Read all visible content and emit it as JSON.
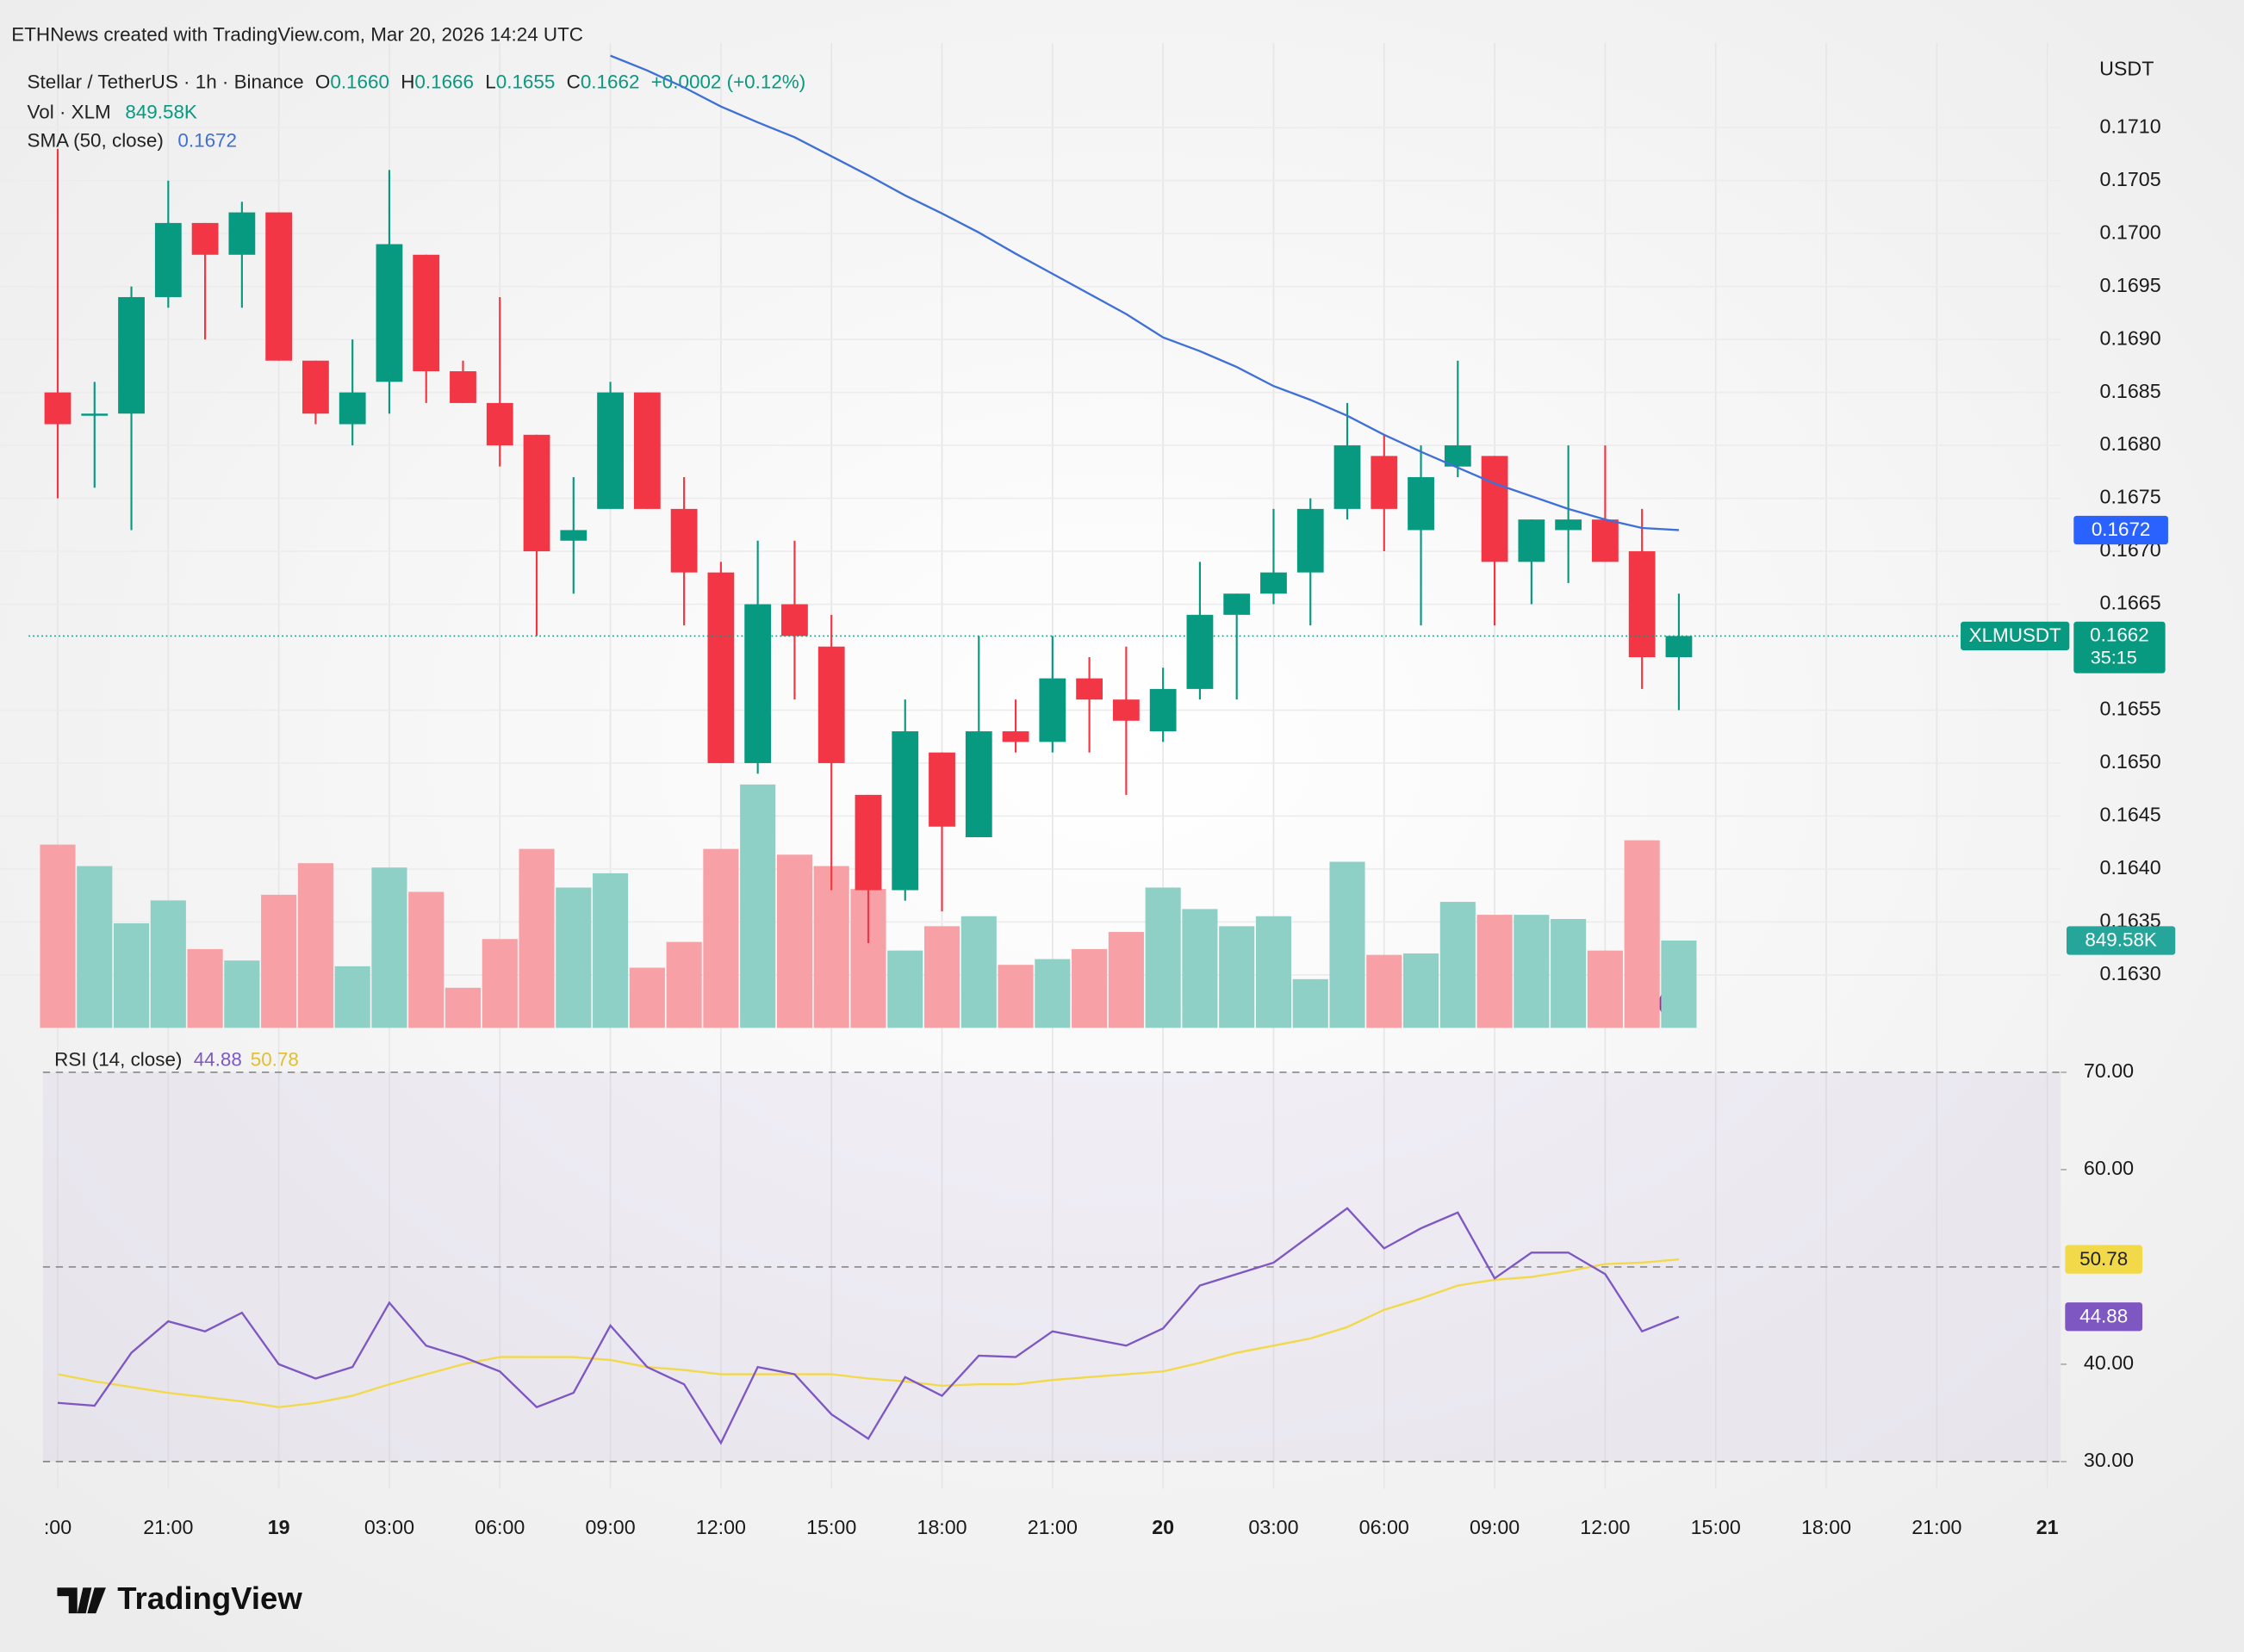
{
  "header": {
    "watermark": "ETHNews created with TradingView.com, Mar 20, 2026 14:24 UTC",
    "symbol": "Stellar / TetherUS · 1h · Binance",
    "ohlc": [
      {
        "key": "O",
        "value": "0.1660"
      },
      {
        "key": "H",
        "value": "0.1666"
      },
      {
        "key": "L",
        "value": "0.1655"
      },
      {
        "key": "C",
        "value": "0.1662"
      }
    ],
    "change": "+0.0002 (+0.12%)",
    "volume_label": "Vol · XLM",
    "volume_value": "849.58K",
    "sma_label": "SMA (50, close)",
    "sma_value": "0.1672",
    "rsi_label": "RSI (14, close)",
    "rsi_value": "44.88",
    "rsi_ma_value": "50.78",
    "currency": "USDT",
    "logo": "TradingView"
  },
  "chart_data": [
    {
      "type": "candlestick",
      "x": [
        "2026-03-18T18:00",
        "2026-03-18T19:00",
        "2026-03-18T20:00",
        "2026-03-18T21:00",
        "2026-03-18T22:00",
        "2026-03-18T23:00",
        "2026-03-19T00:00",
        "2026-03-19T01:00",
        "2026-03-19T02:00",
        "2026-03-19T03:00",
        "2026-03-19T04:00",
        "2026-03-19T05:00",
        "2026-03-19T06:00",
        "2026-03-19T07:00",
        "2026-03-19T08:00",
        "2026-03-19T09:00",
        "2026-03-19T10:00",
        "2026-03-19T11:00",
        "2026-03-19T12:00",
        "2026-03-19T13:00",
        "2026-03-19T14:00",
        "2026-03-19T15:00",
        "2026-03-19T16:00",
        "2026-03-19T17:00",
        "2026-03-19T18:00",
        "2026-03-19T19:00",
        "2026-03-19T20:00",
        "2026-03-19T21:00",
        "2026-03-19T22:00",
        "2026-03-19T23:00",
        "2026-03-20T00:00",
        "2026-03-20T01:00",
        "2026-03-20T02:00",
        "2026-03-20T03:00",
        "2026-03-20T04:00",
        "2026-03-20T05:00",
        "2026-03-20T06:00",
        "2026-03-20T07:00",
        "2026-03-20T08:00",
        "2026-03-20T09:00",
        "2026-03-20T10:00",
        "2026-03-20T11:00",
        "2026-03-20T12:00",
        "2026-03-20T13:00",
        "2026-03-20T14:00"
      ],
      "open": [
        0.1685,
        0.1683,
        0.1683,
        0.1694,
        0.1701,
        0.1698,
        0.1702,
        0.1688,
        0.1682,
        0.1686,
        0.1698,
        0.1687,
        0.1684,
        0.1681,
        0.1671,
        0.1674,
        0.1685,
        0.1674,
        0.1668,
        0.165,
        0.1665,
        0.1661,
        0.1647,
        0.1638,
        0.1651,
        0.1643,
        0.1653,
        0.1652,
        0.1658,
        0.1656,
        0.1653,
        0.1657,
        0.1664,
        0.1666,
        0.1668,
        0.1674,
        0.1679,
        0.1672,
        0.1678,
        0.1679,
        0.1669,
        0.1672,
        0.1673,
        0.167,
        0.166
      ],
      "high": [
        0.1708,
        0.1686,
        0.1695,
        0.1705,
        0.1701,
        0.1703,
        0.1702,
        0.1688,
        0.169,
        0.1706,
        0.1698,
        0.1688,
        0.1694,
        0.1681,
        0.1677,
        0.1686,
        0.1685,
        0.1677,
        0.1669,
        0.1671,
        0.1671,
        0.1664,
        0.1647,
        0.1656,
        0.1651,
        0.1662,
        0.1656,
        0.1662,
        0.166,
        0.1661,
        0.1659,
        0.1669,
        0.1666,
        0.1674,
        0.1675,
        0.1684,
        0.1681,
        0.168,
        0.1688,
        0.1679,
        0.1673,
        0.168,
        0.168,
        0.1674,
        0.1666
      ],
      "low": [
        0.1675,
        0.1676,
        0.1672,
        0.1693,
        0.169,
        0.1693,
        0.1688,
        0.1682,
        0.168,
        0.1683,
        0.1684,
        0.1684,
        0.1678,
        0.1662,
        0.1666,
        0.1674,
        0.1674,
        0.1663,
        0.165,
        0.1649,
        0.1656,
        0.1638,
        0.1633,
        0.1637,
        0.1636,
        0.1643,
        0.1651,
        0.1651,
        0.1651,
        0.1647,
        0.1652,
        0.1656,
        0.1656,
        0.1665,
        0.1663,
        0.1673,
        0.167,
        0.1663,
        0.1677,
        0.1663,
        0.1665,
        0.1667,
        0.1669,
        0.1657,
        0.1655
      ],
      "close": [
        0.1682,
        0.1683,
        0.1694,
        0.1701,
        0.1698,
        0.1702,
        0.1688,
        0.1683,
        0.1685,
        0.1699,
        0.1687,
        0.1684,
        0.168,
        0.167,
        0.1672,
        0.1685,
        0.1674,
        0.1668,
        0.165,
        0.1665,
        0.1662,
        0.165,
        0.1638,
        0.1653,
        0.1644,
        0.1653,
        0.1652,
        0.1658,
        0.1656,
        0.1654,
        0.1657,
        0.1664,
        0.1666,
        0.1668,
        0.1674,
        0.168,
        0.1674,
        0.1677,
        0.168,
        0.1669,
        0.1673,
        0.1673,
        0.1669,
        0.166,
        0.1662
      ],
      "volume": [
        1783000,
        1574000,
        1017000,
        1240000,
        766000,
        655000,
        1295000,
        1602000,
        599000,
        1560000,
        1323000,
        390000,
        864000,
        1741000,
        1365000,
        1504000,
        585000,
        836000,
        1741000,
        2368000,
        1685000,
        1574000,
        1351000,
        752000,
        989000,
        1086000,
        613000,
        669000,
        766000,
        933000,
        1365000,
        1156000,
        989000,
        1086000,
        474000,
        1616000,
        710000,
        724000,
        1226000,
        1100000,
        1100000,
        1059000,
        752000,
        1825000,
        849580
      ],
      "sma": {
        "color": "#3f6fd8",
        "values": [
          null,
          null,
          null,
          null,
          null,
          null,
          null,
          null,
          null,
          null,
          null,
          null,
          null,
          null,
          null,
          0.17168,
          0.17154,
          0.17138,
          0.1712,
          0.17105,
          0.17091,
          0.17073,
          0.17055,
          0.17036,
          0.17019,
          0.17001,
          0.16981,
          0.16962,
          0.16943,
          0.16924,
          0.16902,
          0.16889,
          0.16874,
          0.16856,
          0.16843,
          0.16828,
          0.1681,
          0.16794,
          0.16779,
          0.16764,
          0.16752,
          0.1674,
          0.1673,
          0.16722,
          0.1672
        ]
      },
      "up_color": "#089981",
      "down_color": "#f23645",
      "up_volume_color": "#8fd0c6",
      "down_volume_color": "#f7a0a6",
      "xlim": [
        "2026-03-18T16:26",
        "2026-03-21T00:22"
      ],
      "xticks": [
        {
          "value": "2026-03-18T18:00",
          "label": ":00"
        },
        {
          "value": "2026-03-18T21:00",
          "label": "21:00"
        },
        {
          "value": "2026-03-19T00:00",
          "label": "19"
        },
        {
          "value": "2026-03-19T03:00",
          "label": "03:00"
        },
        {
          "value": "2026-03-19T06:00",
          "label": "06:00"
        },
        {
          "value": "2026-03-19T09:00",
          "label": "09:00"
        },
        {
          "value": "2026-03-19T12:00",
          "label": "12:00"
        },
        {
          "value": "2026-03-19T15:00",
          "label": "15:00"
        },
        {
          "value": "2026-03-19T18:00",
          "label": "18:00"
        },
        {
          "value": "2026-03-19T21:00",
          "label": "21:00"
        },
        {
          "value": "2026-03-20T00:00",
          "label": "20"
        },
        {
          "value": "2026-03-20T03:00",
          "label": "03:00"
        },
        {
          "value": "2026-03-20T06:00",
          "label": "06:00"
        },
        {
          "value": "2026-03-20T09:00",
          "label": "09:00"
        },
        {
          "value": "2026-03-20T12:00",
          "label": "12:00"
        },
        {
          "value": "2026-03-20T15:00",
          "label": "15:00"
        },
        {
          "value": "2026-03-20T18:00",
          "label": "18:00"
        },
        {
          "value": "2026-03-20T21:00",
          "label": "21:00"
        },
        {
          "value": "2026-03-21T00:00",
          "label": "21"
        }
      ],
      "ylim": [
        0.1625,
        0.1718
      ],
      "yticks": [
        {
          "value": 0.171,
          "label": "0.1710"
        },
        {
          "value": 0.1705,
          "label": "0.1705"
        },
        {
          "value": 0.17,
          "label": "0.1700"
        },
        {
          "value": 0.1695,
          "label": "0.1695"
        },
        {
          "value": 0.169,
          "label": "0.1690"
        },
        {
          "value": 0.1685,
          "label": "0.1685"
        },
        {
          "value": 0.168,
          "label": "0.1680"
        },
        {
          "value": 0.1675,
          "label": "0.1675"
        },
        {
          "value": 0.167,
          "label": "0.1670"
        },
        {
          "value": 0.1665,
          "label": "0.1665"
        },
        {
          "value": 0.1655,
          "label": "0.1655"
        },
        {
          "value": 0.165,
          "label": "0.1650"
        },
        {
          "value": 0.1645,
          "label": "0.1645"
        },
        {
          "value": 0.164,
          "label": "0.1640"
        },
        {
          "value": 0.1635,
          "label": "0.1635"
        },
        {
          "value": 0.163,
          "label": "0.1630"
        }
      ],
      "grid": true,
      "badges": {
        "sma": "0.1672",
        "ticker": "XLMUSDT",
        "price": "0.1662",
        "countdown": "35:15",
        "volume": "849.58K"
      }
    },
    {
      "type": "line",
      "x": [
        "2026-03-18T18:00",
        "2026-03-18T19:00",
        "2026-03-18T20:00",
        "2026-03-18T21:00",
        "2026-03-18T22:00",
        "2026-03-18T23:00",
        "2026-03-19T00:00",
        "2026-03-19T01:00",
        "2026-03-19T02:00",
        "2026-03-19T03:00",
        "2026-03-19T04:00",
        "2026-03-19T05:00",
        "2026-03-19T06:00",
        "2026-03-19T07:00",
        "2026-03-19T08:00",
        "2026-03-19T09:00",
        "2026-03-19T10:00",
        "2026-03-19T11:00",
        "2026-03-19T12:00",
        "2026-03-19T13:00",
        "2026-03-19T14:00",
        "2026-03-19T15:00",
        "2026-03-19T16:00",
        "2026-03-19T17:00",
        "2026-03-19T18:00",
        "2026-03-19T19:00",
        "2026-03-19T20:00",
        "2026-03-19T21:00",
        "2026-03-19T22:00",
        "2026-03-19T23:00",
        "2026-03-20T00:00",
        "2026-03-20T01:00",
        "2026-03-20T02:00",
        "2026-03-20T03:00",
        "2026-03-20T04:00",
        "2026-03-20T05:00",
        "2026-03-20T06:00",
        "2026-03-20T07:00",
        "2026-03-20T08:00",
        "2026-03-20T09:00",
        "2026-03-20T10:00",
        "2026-03-20T11:00",
        "2026-03-20T12:00",
        "2026-03-20T13:00",
        "2026-03-20T14:00"
      ],
      "series": [
        {
          "color": "#7e57c2",
          "values": [
            36.03,
            35.74,
            41.18,
            44.41,
            43.38,
            45.29,
            40.0,
            38.53,
            39.71,
            46.32,
            41.91,
            40.74,
            39.26,
            35.59,
            37.06,
            43.97,
            39.71,
            37.94,
            31.91,
            39.71,
            38.97,
            34.85,
            32.35,
            38.68,
            36.76,
            40.88,
            40.74,
            43.38,
            42.65,
            41.91,
            43.68,
            48.09,
            49.26,
            50.44,
            53.24,
            56.03,
            51.91,
            53.97,
            55.59,
            48.82,
            51.47,
            51.47,
            49.26,
            43.38,
            44.88
          ],
          "value_label": "44.88"
        },
        {
          "color": "#f2d94a",
          "values": [
            38.97,
            38.24,
            37.65,
            37.06,
            36.62,
            36.18,
            35.59,
            36.03,
            36.76,
            37.94,
            38.97,
            40.0,
            40.74,
            40.74,
            40.74,
            40.44,
            39.71,
            39.41,
            38.97,
            38.97,
            38.97,
            38.97,
            38.53,
            38.24,
            37.79,
            37.94,
            37.94,
            38.38,
            38.68,
            38.97,
            39.26,
            40.15,
            41.18,
            41.91,
            42.65,
            43.82,
            45.59,
            46.76,
            48.09,
            48.68,
            48.97,
            49.56,
            50.29,
            50.44,
            50.78
          ],
          "value_label": "50.78"
        }
      ],
      "xlim": [
        "2026-03-18T16:26",
        "2026-03-21T00:22"
      ],
      "ylim": [
        27.2,
        72.8
      ],
      "yticks": [
        {
          "value": 70,
          "label": "70.00"
        },
        {
          "value": 60,
          "label": "60.00"
        },
        {
          "value": 40,
          "label": "40.00"
        },
        {
          "value": 30,
          "label": "30.00"
        }
      ],
      "bands": [
        70,
        50,
        30
      ]
    }
  ]
}
